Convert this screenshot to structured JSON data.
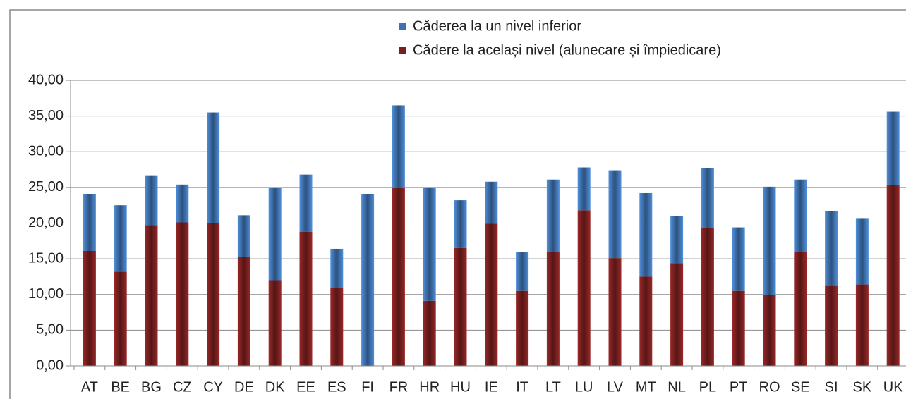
{
  "chart_data": {
    "type": "stacked-bar",
    "categories": [
      "AT",
      "BE",
      "BG",
      "CZ",
      "CY",
      "DE",
      "DK",
      "EE",
      "ES",
      "FI",
      "FR",
      "HR",
      "HU",
      "IE",
      "IT",
      "LT",
      "LU",
      "LV",
      "MT",
      "NL",
      "PL",
      "PT",
      "RO",
      "SE",
      "SI",
      "SK",
      "UK"
    ],
    "series": [
      {
        "name": "Cădere la același nivel (alunecare și împiedicare)",
        "color": "#7a1f1f",
        "values": [
          16.1,
          13.2,
          19.7,
          20.1,
          20.0,
          15.3,
          12.0,
          18.8,
          10.9,
          0,
          24.9,
          9.1,
          16.5,
          19.9,
          10.5,
          15.9,
          21.8,
          15.1,
          12.5,
          14.4,
          19.3,
          10.5,
          9.9,
          16.0,
          11.3,
          11.4,
          25.3
        ]
      },
      {
        "name": "Căderea la un nivel inferior",
        "color": "#3f72b0",
        "values": [
          8.0,
          9.3,
          7.0,
          5.3,
          15.5,
          5.8,
          12.9,
          8.0,
          5.5,
          24.1,
          11.6,
          15.9,
          6.7,
          5.9,
          5.4,
          10.2,
          6.0,
          12.3,
          11.7,
          6.6,
          8.4,
          8.9,
          15.2,
          10.1,
          10.4,
          9.3,
          10.3
        ]
      }
    ],
    "ylim": [
      0,
      40
    ],
    "yticks": [
      {
        "value": 0,
        "label": "0,00"
      },
      {
        "value": 5,
        "label": "5,00"
      },
      {
        "value": 10,
        "label": "10,00"
      },
      {
        "value": 15,
        "label": "15,00"
      },
      {
        "value": 20,
        "label": "20,00"
      },
      {
        "value": 25,
        "label": "25,00"
      },
      {
        "value": 30,
        "label": "30,00"
      },
      {
        "value": 35,
        "label": "35,00"
      },
      {
        "value": 40,
        "label": "40,00"
      }
    ],
    "grid": true
  }
}
